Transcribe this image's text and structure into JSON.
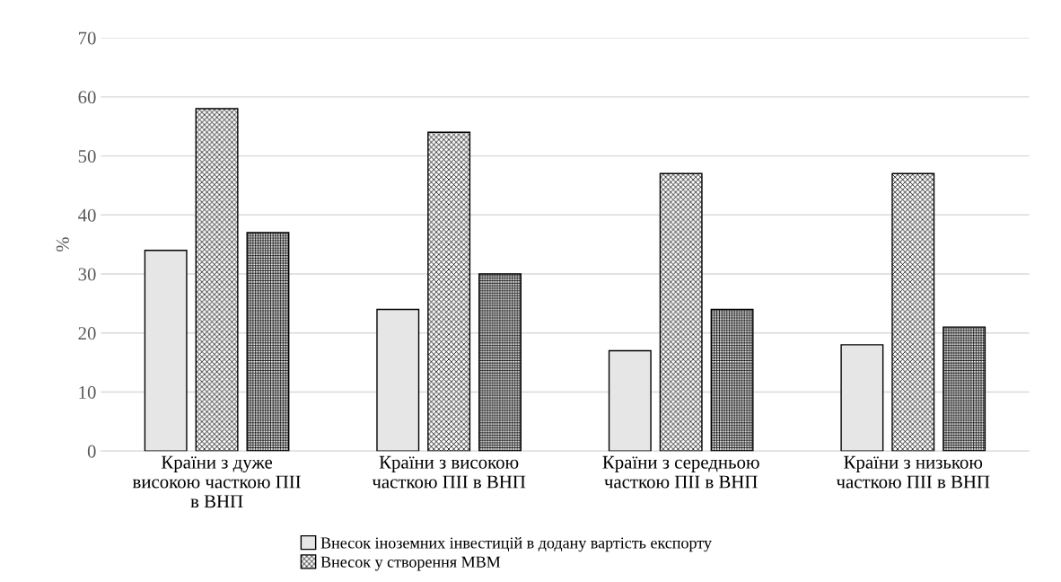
{
  "chart_data": {
    "type": "bar",
    "ylabel": "%",
    "categories": [
      "Країни з дуже високою часткою ПІІ в ВНП",
      "Країни з високою часткою ПІІ в ВНП",
      "Країни з середньою часткою ПІІ в ВНП",
      "Країни з низькою часткою ПІІ в ВНП"
    ],
    "series": [
      {
        "name": "Внесок іноземних інвестицій в додану вартість експорту",
        "color": "#e7e6e6",
        "values": [
          34,
          24,
          17,
          18
        ]
      },
      {
        "name": "Внесок у створення МВМ",
        "color": "#000000",
        "values": [
          58,
          54,
          47,
          47
        ]
      },
      {
        "color": "#000000",
        "values": [
          37,
          30,
          24,
          21
        ]
      }
    ],
    "ylim": [
      0,
      70
    ],
    "yticks": [
      0,
      10,
      20,
      30,
      40,
      50,
      60,
      70
    ],
    "grid": "y",
    "legend": "bottom"
  }
}
